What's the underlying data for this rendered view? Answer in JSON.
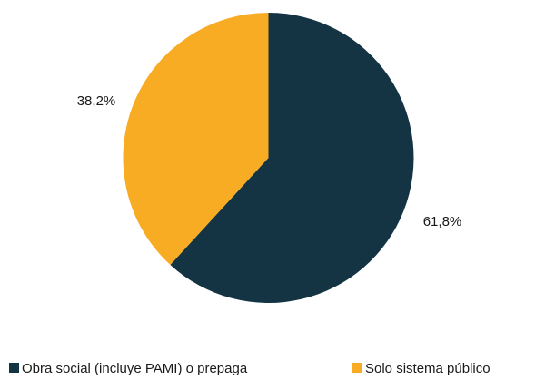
{
  "chart_data": {
    "type": "pie",
    "title": "",
    "slices": [
      {
        "name": "Obra social (incluye PAMI) o prepaga",
        "value": 61.8,
        "label": "61,8%",
        "color": "#143444"
      },
      {
        "name": "Solo sistema público",
        "value": 38.2,
        "label": "38,2%",
        "color": "#f8ac24"
      }
    ],
    "legend_position": "bottom"
  }
}
